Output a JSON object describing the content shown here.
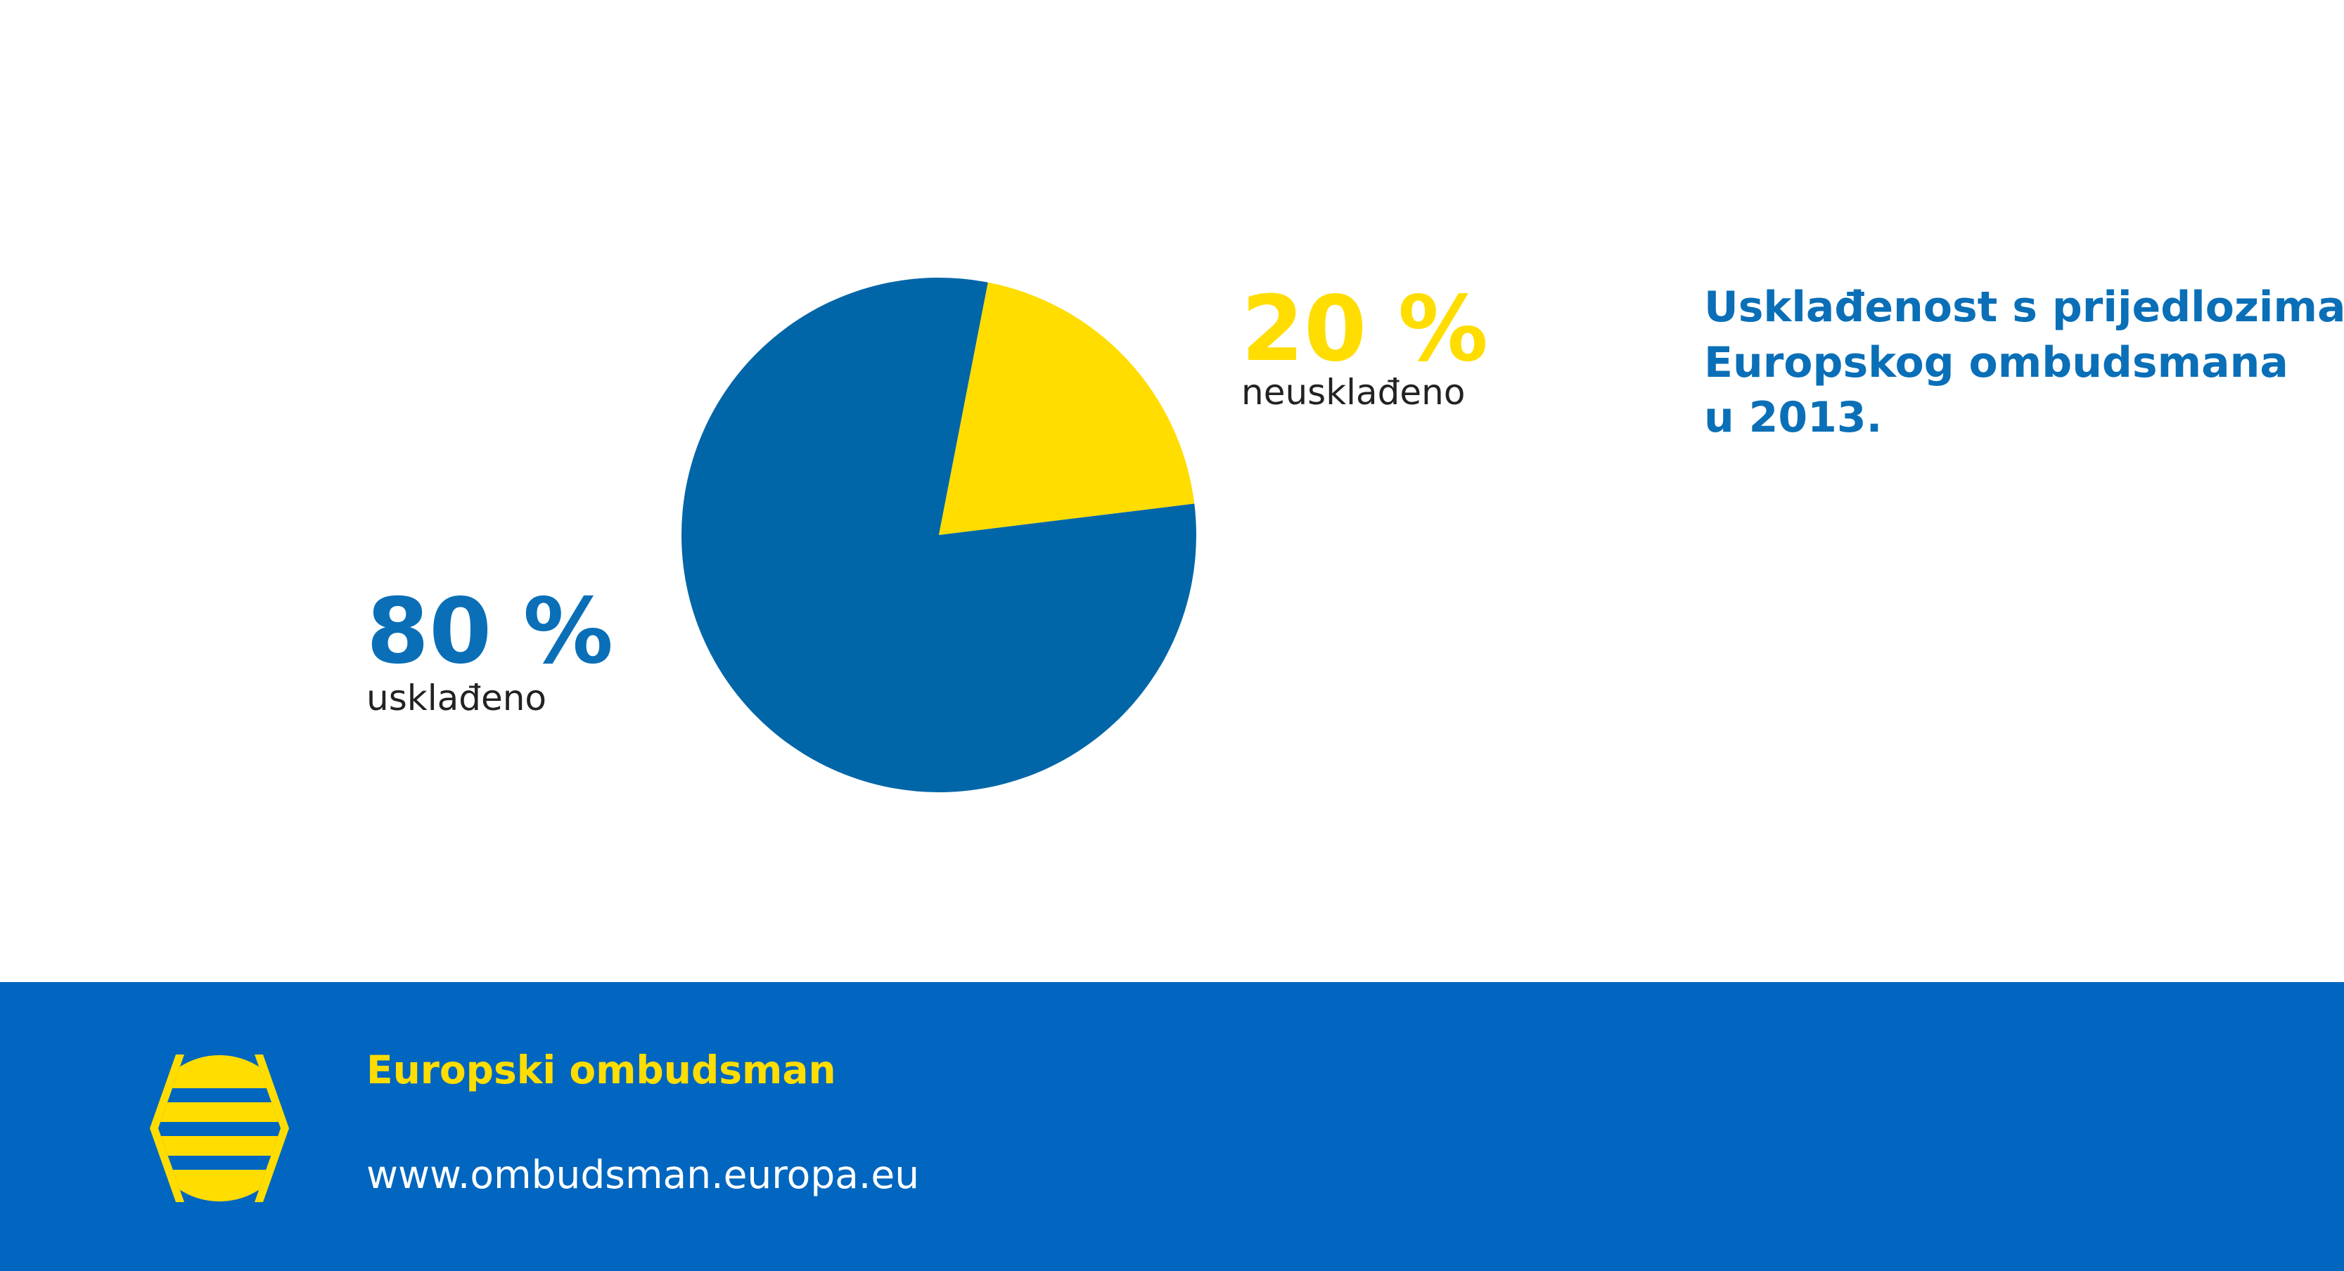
{
  "chart_data": {
    "type": "pie",
    "title": [
      "Usklađenost s prijedlozima",
      "Europskog ombudsmana",
      "u 2013."
    ],
    "categories": [
      "usklađeno",
      "neusklađeno"
    ],
    "values": [
      80,
      20
    ],
    "value_labels": [
      "80 %",
      "20 %"
    ],
    "colors": [
      "#0066a8",
      "#ffdd00"
    ],
    "label_colors": [
      "#0a6fb7",
      "#ffdd00"
    ]
  },
  "footer": {
    "organization": "Europski ombudsman",
    "url": "www.ombudsman.europa.eu"
  }
}
